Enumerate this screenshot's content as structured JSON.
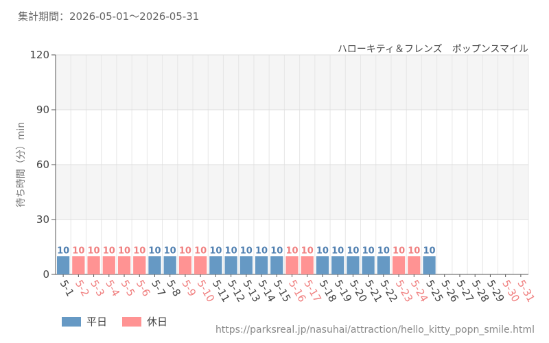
{
  "header": {
    "period": "集計期間：2026-05-01～2026-05-31",
    "subtitle": "ハローキティ＆フレンズ　ポップンスマイル"
  },
  "footer": {
    "url": "https://parksreal.jp/nasuhai/attraction/hello_kitty_popn_smile.html"
  },
  "legend": [
    {
      "label": "平日",
      "color": "#6699c4"
    },
    {
      "label": "休日",
      "color": "#ff9393"
    }
  ],
  "colors": {
    "weekday": "#6699c4",
    "holiday": "#ff9393",
    "weekday_text": "#4f7fb0",
    "holiday_text": "#f07f7f",
    "axis_text": "#444444",
    "band": "#f5f5f5",
    "grid": "#e6e6e6"
  },
  "chart_data": {
    "type": "bar",
    "ylabel": "待ち時間（分）min",
    "ylim": [
      0,
      120
    ],
    "yticks": [
      0,
      30,
      60,
      90,
      120
    ],
    "grid": true,
    "legend_position": "bottom-left",
    "categories": [
      "5-1",
      "5-2",
      "5-3",
      "5-4",
      "5-5",
      "5-6",
      "5-7",
      "5-8",
      "5-9",
      "5-10",
      "5-11",
      "5-12",
      "5-13",
      "5-14",
      "5-15",
      "5-16",
      "5-17",
      "5-18",
      "5-19",
      "5-20",
      "5-21",
      "5-22",
      "5-23",
      "5-24",
      "5-25",
      "5-26",
      "5-27",
      "5-28",
      "5-29",
      "5-30",
      "5-31"
    ],
    "values": [
      10,
      10,
      10,
      10,
      10,
      10,
      10,
      10,
      10,
      10,
      10,
      10,
      10,
      10,
      10,
      10,
      10,
      10,
      10,
      10,
      10,
      10,
      10,
      10,
      10,
      null,
      null,
      null,
      null,
      null,
      null
    ],
    "day_type": [
      "weekday",
      "holiday",
      "holiday",
      "holiday",
      "holiday",
      "holiday",
      "weekday",
      "weekday",
      "holiday",
      "holiday",
      "weekday",
      "weekday",
      "weekday",
      "weekday",
      "weekday",
      "holiday",
      "holiday",
      "weekday",
      "weekday",
      "weekday",
      "weekday",
      "weekday",
      "holiday",
      "holiday",
      "weekday",
      "weekday",
      "weekday",
      "weekday",
      "weekday",
      "holiday",
      "holiday"
    ]
  }
}
